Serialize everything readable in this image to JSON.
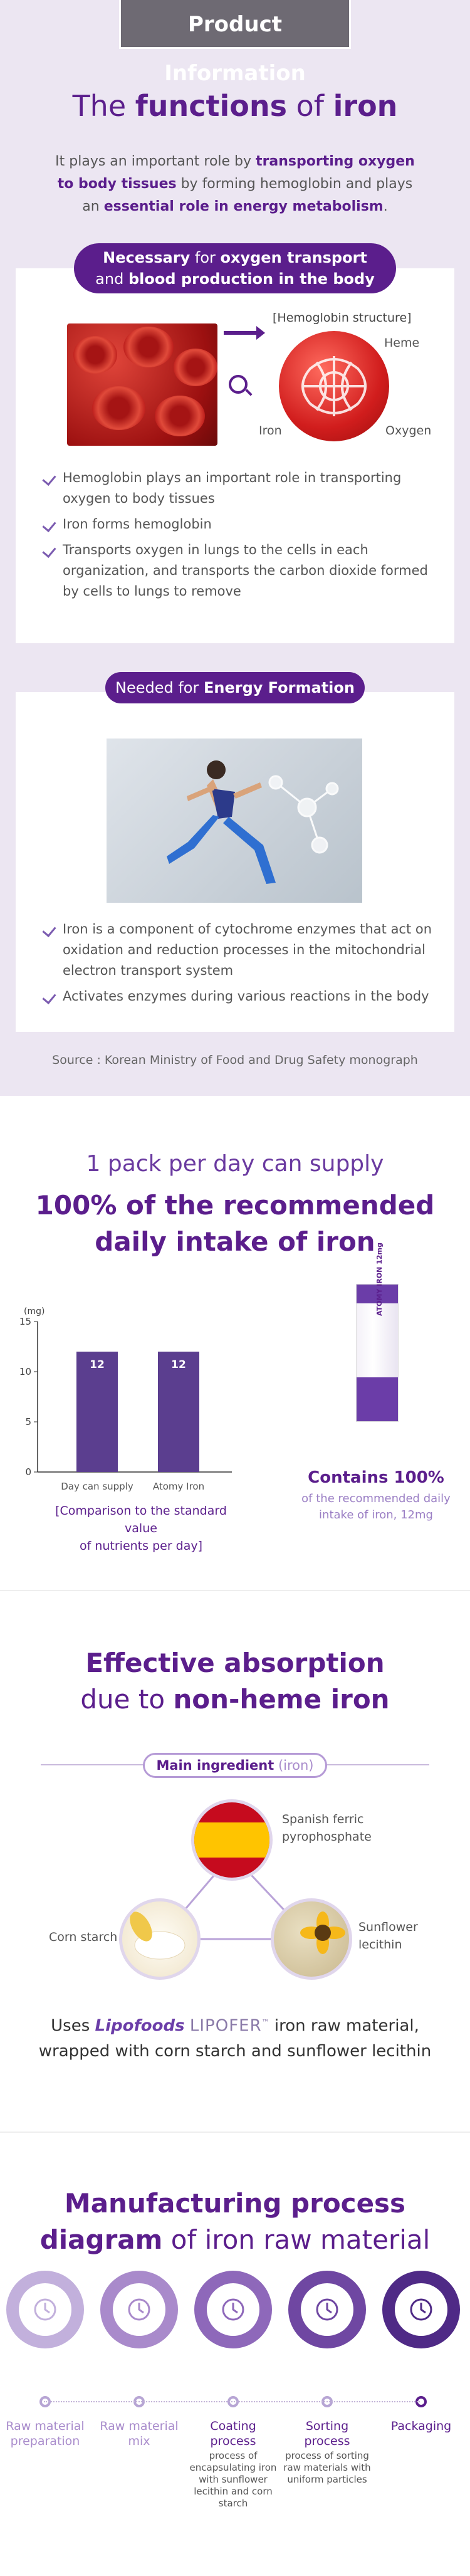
{
  "header": {
    "tab": "Product Information"
  },
  "functions": {
    "title_pre": "The ",
    "title_bold": "functions",
    "title_mid": " of ",
    "title_bold2": "iron",
    "desc_1": "It plays an important role by ",
    "desc_hl1": "transporting oxygen to body tissues",
    "desc_2": " by forming hemoglobin and plays an ",
    "desc_hl2": "essential role in energy metabolism",
    "desc_3": "."
  },
  "card1": {
    "pill_bold1": "Necessary",
    "pill_normal": " for ",
    "pill_bold2": "oxygen transport",
    "pill_line2_pre": "and ",
    "pill_line2_bold": "blood production in the body",
    "hemo_label": "[Hemoglobin structure]",
    "label_heme": "Heme",
    "label_iron": "Iron",
    "label_oxygen": "Oxygen",
    "checks": [
      "Hemoglobin plays an important role in transporting oxygen to body tissues",
      "Iron forms hemoglobin",
      "Transports oxygen in lungs to the cells in each organization, and transports the carbon dioxide formed by cells to lungs to remove"
    ]
  },
  "card2": {
    "pill_normal": "Needed for ",
    "pill_bold": "Energy Formation",
    "checks": [
      "Iron is a component of cytochrome enzymes that act on oxidation and reduction processes in the mitochondrial electron transport system",
      "Activates enzymes during various reactions in the body"
    ]
  },
  "source": "Source : Korean Ministry of Food and Drug Safety monograph",
  "supply": {
    "subtitle": "1 pack per day can supply",
    "title_1": "100% of the recommended",
    "title_2": "daily intake of iron",
    "note_1": "[Comparison to the standard value",
    "note_2": "of nutrients per day]",
    "stick_text": "ATOMY IRON 12mg",
    "contains": "Contains 100%",
    "contains_sub_1": "of the recommended daily",
    "contains_sub_2": "intake of iron, 12mg"
  },
  "chart_data": {
    "type": "bar",
    "categories": [
      "Day can supply",
      "Atomy Iron"
    ],
    "values": [
      12,
      12
    ],
    "ylabel": "(mg)",
    "ylim": [
      0,
      15
    ],
    "yticks": [
      0,
      5,
      10,
      15
    ],
    "bar_color": "#5b3e8f",
    "grid": false
  },
  "absorption": {
    "title_1": "Effective absorption",
    "title_2_pre": "due to ",
    "title_2_bold": "non-heme iron",
    "pill_bold": "Main ingredient",
    "pill_paren": " (iron)",
    "label_spanish_1": "Spanish ferric",
    "label_spanish_2": "pyrophosphate",
    "label_corn": "Corn starch",
    "label_sun_1": "Sunflower",
    "label_sun_2": "lecithin",
    "uses_pre": "Uses ",
    "lipo": "Lipofoods",
    "lipofer": "LIPOFER",
    "lipofer_tm": "™",
    "uses_post": " iron raw material,",
    "uses_line2": "wrapped with corn starch and sunflower lecithin"
  },
  "process": {
    "title_1": "Manufacturing process",
    "title_2_bold": "diagram",
    "title_2_post": " of iron raw material",
    "steps": [
      {
        "label_1": "Raw material",
        "label_2": "preparation",
        "sub": "",
        "color": "#c2b0dc",
        "icon": "clock-icon"
      },
      {
        "label_1": "Raw material",
        "label_2": "mix",
        "sub": "",
        "color": "#a98acb",
        "icon": "mixer-icon"
      },
      {
        "label_1": "Coating",
        "label_2": "process",
        "sub": "process of encapsulating iron with sunflower lecithin and corn starch",
        "color": "#8e68ba",
        "icon": "coating-icon"
      },
      {
        "label_1": "Sorting",
        "label_2": "process",
        "sub": "process of sorting raw materials with uniform particles",
        "color": "#6f47a2",
        "icon": "sorting-icon"
      },
      {
        "label_1": "Packaging",
        "label_2": "",
        "sub": "",
        "color": "#4f2a86",
        "icon": "packaging-icon"
      }
    ]
  }
}
